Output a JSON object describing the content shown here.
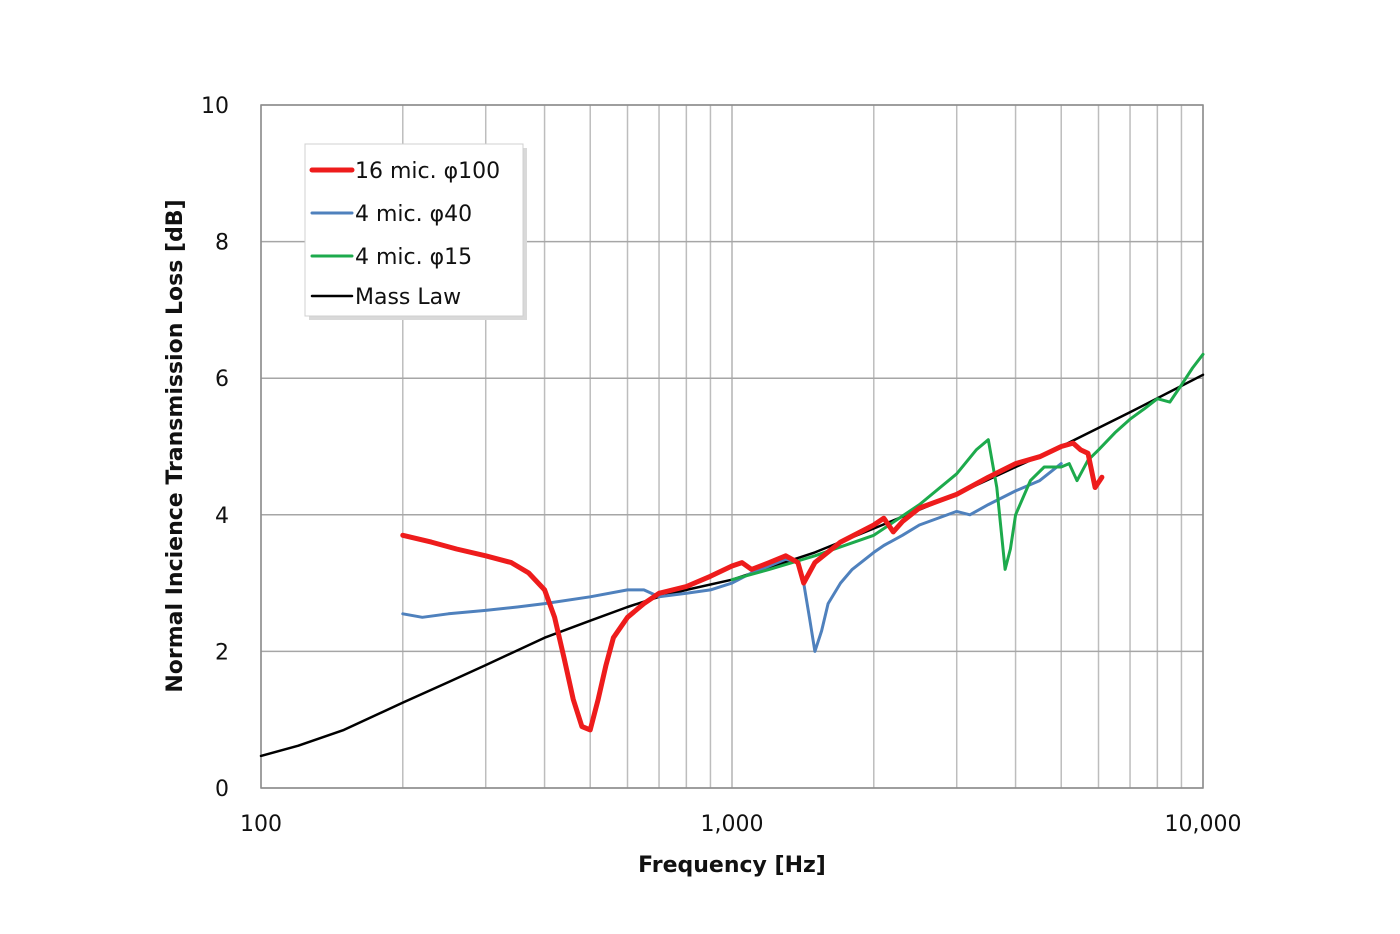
{
  "chart_data": {
    "type": "line",
    "title": "",
    "xlabel": "Frequency [Hz]",
    "ylabel": "Normal Incience Transmission Loss [dB]",
    "x_scale": "log",
    "xlim": [
      100,
      10000
    ],
    "ylim": [
      0,
      10
    ],
    "x_ticks": [
      100,
      1000,
      10000
    ],
    "x_tick_labels": [
      "100",
      "1,000",
      "10,000"
    ],
    "y_ticks": [
      0,
      2,
      4,
      6,
      8,
      10
    ],
    "y_tick_labels": [
      "0",
      "2",
      "4",
      "6",
      "8",
      "10"
    ],
    "grid": true,
    "legend_position": "top-left",
    "series": [
      {
        "name": "16 mic. φ100",
        "color": "#ee1c1c",
        "x": [
          200,
          230,
          260,
          300,
          340,
          370,
          400,
          420,
          440,
          460,
          480,
          500,
          520,
          540,
          560,
          600,
          650,
          700,
          800,
          900,
          1000,
          1050,
          1100,
          1200,
          1300,
          1380,
          1420,
          1500,
          1700,
          2000,
          2100,
          2200,
          2300,
          2500,
          3000,
          3500,
          4000,
          4500,
          5000,
          5300,
          5500,
          5700,
          5900,
          6100
        ],
        "y": [
          3.7,
          3.6,
          3.5,
          3.4,
          3.3,
          3.15,
          2.9,
          2.5,
          1.9,
          1.3,
          0.9,
          0.85,
          1.3,
          1.8,
          2.2,
          2.5,
          2.7,
          2.85,
          2.95,
          3.1,
          3.25,
          3.3,
          3.2,
          3.3,
          3.4,
          3.3,
          3.0,
          3.3,
          3.6,
          3.85,
          3.95,
          3.75,
          3.9,
          4.1,
          4.3,
          4.55,
          4.75,
          4.85,
          5.0,
          5.05,
          4.95,
          4.9,
          4.4,
          4.55
        ]
      },
      {
        "name": "4 mic. φ40",
        "color": "#4f81bd",
        "x": [
          200,
          220,
          250,
          300,
          350,
          400,
          500,
          600,
          650,
          700,
          800,
          900,
          1000,
          1100,
          1200,
          1300,
          1380,
          1420,
          1460,
          1500,
          1550,
          1600,
          1700,
          1800,
          2000,
          2100,
          2300,
          2500,
          3000,
          3200,
          3500,
          4000,
          4500,
          5000
        ],
        "y": [
          2.55,
          2.5,
          2.55,
          2.6,
          2.65,
          2.7,
          2.8,
          2.9,
          2.9,
          2.8,
          2.85,
          2.9,
          3.0,
          3.15,
          3.25,
          3.35,
          3.3,
          3.0,
          2.5,
          2.0,
          2.3,
          2.7,
          3.0,
          3.2,
          3.45,
          3.55,
          3.7,
          3.85,
          4.05,
          4.0,
          4.15,
          4.35,
          4.5,
          4.75
        ]
      },
      {
        "name": "4 mic. φ15",
        "color": "#1daa4c",
        "x": [
          1000,
          1200,
          1500,
          2000,
          2500,
          3000,
          3300,
          3500,
          3650,
          3800,
          3900,
          4000,
          4300,
          4600,
          5000,
          5200,
          5400,
          5500,
          5700,
          6000,
          6500,
          7000,
          7500,
          8000,
          8500,
          9000,
          9500,
          10000
        ],
        "y": [
          3.05,
          3.2,
          3.4,
          3.7,
          4.15,
          4.6,
          4.95,
          5.1,
          4.4,
          3.2,
          3.5,
          4.0,
          4.5,
          4.7,
          4.7,
          4.75,
          4.5,
          4.6,
          4.8,
          4.95,
          5.2,
          5.4,
          5.55,
          5.7,
          5.65,
          5.9,
          6.15,
          6.35
        ]
      },
      {
        "name": "Mass Law",
        "color": "#000000",
        "x": [
          100,
          120,
          150,
          200,
          250,
          300,
          400,
          500,
          600,
          700,
          800,
          1000,
          1500,
          2000,
          3000,
          4000,
          5000,
          7000,
          10000
        ],
        "y": [
          0.47,
          0.62,
          0.85,
          1.25,
          1.55,
          1.8,
          2.2,
          2.45,
          2.65,
          2.8,
          2.9,
          3.05,
          3.45,
          3.8,
          4.3,
          4.7,
          5.0,
          5.5,
          6.05
        ]
      }
    ]
  }
}
